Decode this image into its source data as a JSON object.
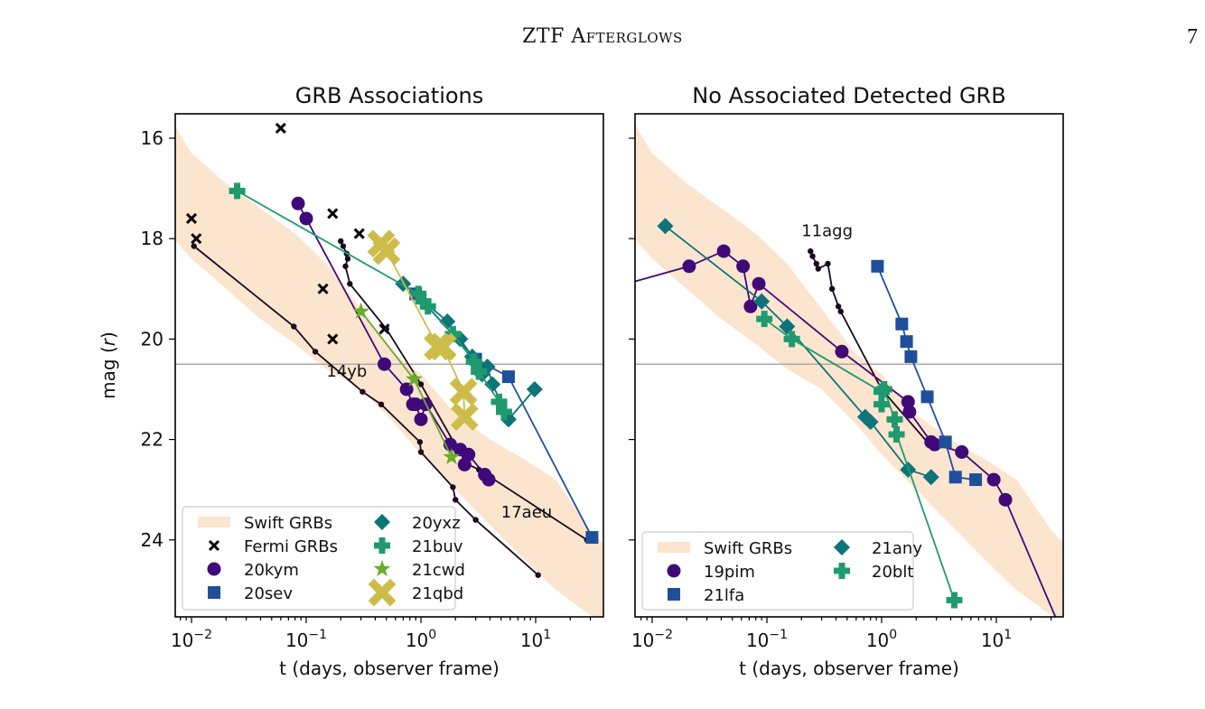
{
  "page": {
    "running_header": "ZTF Afterglows",
    "page_number": "7"
  },
  "chart_data": [
    {
      "type": "scatter",
      "title": "GRB Associations",
      "xlabel": "t (days, observer frame)",
      "ylabel": "mag (r)",
      "xscale": "log",
      "xlim": [
        0.007,
        40
      ],
      "ylim": [
        25.5,
        15.6
      ],
      "yinverted": true,
      "xticks": [
        "10^-2",
        "10^-1",
        "10^0",
        "10^1"
      ],
      "yticks": [
        16,
        18,
        20,
        22,
        24
      ],
      "hline": 20.5,
      "legend_placement": "lower-left",
      "legend": [
        "Swift GRBs",
        "Fermi GRBs",
        "20kym",
        "20sev",
        "20yxz",
        "21buv",
        "21cwd",
        "21qbd"
      ],
      "annotations": [
        {
          "text": "14yb",
          "x": 0.15,
          "y": 20.75
        },
        {
          "text": "17aeu",
          "x": 5.0,
          "y": 23.55
        }
      ],
      "swift_band": {
        "x": [
          0.007,
          0.01,
          0.02,
          0.04,
          0.08,
          0.15,
          0.3,
          0.6,
          1.0,
          2.0,
          4.0,
          8.0,
          15.0,
          30.0,
          40.0
        ],
        "upper": [
          15.7,
          16.3,
          16.9,
          17.4,
          17.9,
          18.5,
          19.4,
          20.3,
          20.7,
          21.5,
          22.0,
          22.4,
          22.8,
          23.8,
          24.1
        ],
        "lower": [
          18.0,
          18.4,
          19.0,
          19.6,
          20.1,
          20.6,
          21.0,
          21.7,
          22.3,
          23.0,
          23.7,
          24.4,
          25.0,
          25.5,
          25.6
        ]
      },
      "series": [
        {
          "name": "Fermi GRBs",
          "marker": "x",
          "color": "#000000",
          "line": false,
          "x": [
            0.06,
            0.01,
            0.011,
            0.17,
            0.14,
            0.29,
            0.17,
            0.48
          ],
          "y": [
            15.8,
            17.6,
            18.0,
            17.5,
            19.0,
            17.9,
            20.0,
            19.8
          ]
        },
        {
          "name": "14yb",
          "marker": "dot",
          "color": "#1a0a1e",
          "line": true,
          "x": [
            0.0105,
            0.078,
            0.12,
            0.31,
            0.45,
            0.98,
            1.0,
            1.9,
            2.0,
            3.0,
            10.5
          ],
          "y": [
            18.15,
            19.75,
            20.25,
            21.05,
            21.3,
            22.05,
            22.25,
            22.95,
            23.2,
            23.6,
            24.7
          ]
        },
        {
          "name": "17aeu",
          "marker": "dot",
          "color": "#1a0a1e",
          "line": true,
          "x": [
            0.2,
            0.21,
            0.225,
            0.23,
            0.22,
            0.24,
            0.5,
            1.0,
            2.1,
            2.6,
            3.2,
            28
          ],
          "y": [
            18.05,
            18.15,
            18.3,
            18.4,
            18.55,
            18.9,
            19.8,
            20.9,
            22.2,
            22.5,
            22.6,
            24.0
          ]
        },
        {
          "name": "20kym",
          "marker": "circle",
          "color": "#40097a",
          "line": true,
          "x": [
            0.085,
            0.1,
            0.48,
            0.75,
            0.85,
            0.9,
            1.0,
            1.1,
            1.8,
            2.2,
            2.4,
            2.6,
            3.6,
            3.9
          ],
          "y": [
            17.3,
            17.6,
            20.5,
            21.0,
            21.3,
            21.3,
            21.6,
            21.3,
            22.1,
            22.2,
            22.5,
            22.3,
            22.7,
            22.8
          ]
        },
        {
          "name": "20sev",
          "marker": "square",
          "color": "#1f4f9a",
          "line": true,
          "x": [
            0.9,
            3.0,
            5.8,
            31
          ],
          "y": [
            19.1,
            20.4,
            20.75,
            23.95
          ]
        },
        {
          "name": "20yxz",
          "marker": "diamond",
          "color": "#0e7479",
          "line": true,
          "x": [
            0.7,
            1.7,
            2.2,
            2.8,
            3.1,
            3.4,
            3.8,
            4.2,
            5.8,
            9.8
          ],
          "y": [
            18.9,
            19.65,
            20.0,
            20.35,
            20.5,
            20.7,
            20.55,
            20.9,
            21.6,
            21.0
          ]
        },
        {
          "name": "21buv",
          "marker": "plus",
          "color": "#1f9a6e",
          "line": true,
          "x": [
            0.025,
            0.95,
            1.05,
            1.15,
            1.9,
            2.9,
            3.2,
            4.8,
            5.3
          ],
          "y": [
            17.05,
            19.1,
            19.25,
            19.35,
            19.9,
            20.45,
            20.65,
            21.25,
            21.45
          ]
        },
        {
          "name": "21cwd",
          "marker": "star",
          "color": "#6aad2c",
          "line": true,
          "x": [
            0.3,
            0.87,
            1.85
          ],
          "y": [
            19.45,
            20.8,
            22.35
          ]
        },
        {
          "name": "21qbd",
          "marker": "xfat",
          "color": "#cdbc49",
          "line": true,
          "x": [
            0.45,
            0.5,
            1.4,
            1.55,
            2.35,
            2.4
          ],
          "y": [
            18.1,
            18.25,
            20.15,
            20.15,
            21.05,
            21.55
          ]
        }
      ]
    },
    {
      "type": "scatter",
      "title": "No Associated Detected GRB",
      "xlabel": "t (days, observer frame)",
      "ylabel": "",
      "xscale": "log",
      "xlim": [
        0.007,
        40
      ],
      "ylim": [
        25.5,
        15.6
      ],
      "yinverted": true,
      "xticks": [
        "10^-2",
        "10^-1",
        "10^0",
        "10^1"
      ],
      "yticks": [
        16,
        18,
        20,
        22,
        24
      ],
      "hline": 20.5,
      "legend_placement": "lower-left",
      "legend": [
        "Swift GRBs",
        "19pim",
        "21lfa",
        "21any",
        "20blt"
      ],
      "annotations": [
        {
          "text": "11agg",
          "x": 0.2,
          "y": 17.95
        }
      ],
      "swift_band": {
        "x": [
          0.007,
          0.01,
          0.02,
          0.04,
          0.08,
          0.15,
          0.3,
          0.6,
          1.0,
          2.0,
          4.0,
          8.0,
          15.0,
          30.0,
          40.0
        ],
        "upper": [
          15.7,
          16.3,
          16.9,
          17.4,
          17.9,
          18.5,
          19.4,
          20.3,
          20.7,
          21.5,
          22.0,
          22.4,
          22.8,
          23.8,
          24.1
        ],
        "lower": [
          18.0,
          18.4,
          19.0,
          19.6,
          20.1,
          20.6,
          21.0,
          21.7,
          22.3,
          23.0,
          23.7,
          24.4,
          25.0,
          25.5,
          25.6
        ]
      },
      "series": [
        {
          "name": "11agg",
          "marker": "dot",
          "color": "#1a0a1e",
          "line": true,
          "x": [
            0.24,
            0.25,
            0.27,
            0.28,
            0.34,
            0.37,
            0.42,
            0.44,
            1.0,
            2.5
          ],
          "y": [
            18.25,
            18.35,
            18.5,
            18.6,
            18.5,
            19.0,
            19.35,
            19.45,
            21.0,
            22.05
          ]
        },
        {
          "name": "19pim",
          "marker": "circle",
          "color": "#40097a",
          "line": true,
          "x": [
            0.005,
            0.021,
            0.042,
            0.062,
            0.072,
            0.085,
            0.45,
            1.7,
            1.75,
            2.7,
            2.9,
            5.0,
            9.5,
            12,
            40
          ],
          "y": [
            18.95,
            18.55,
            18.25,
            18.55,
            19.35,
            18.9,
            20.25,
            21.25,
            21.45,
            22.05,
            22.1,
            22.25,
            22.8,
            23.2,
            26
          ]
        },
        {
          "name": "21lfa",
          "marker": "square",
          "color": "#1f4f9a",
          "line": true,
          "x": [
            0.92,
            1.5,
            1.65,
            1.8,
            2.5,
            3.6,
            4.4,
            6.6
          ],
          "y": [
            18.55,
            19.7,
            20.05,
            20.35,
            21.15,
            22.05,
            22.75,
            22.8
          ]
        },
        {
          "name": "21any",
          "marker": "diamond",
          "color": "#0e7479",
          "line": true,
          "x": [
            0.013,
            0.09,
            0.15,
            0.72,
            0.8,
            1.7,
            2.7
          ],
          "y": [
            17.75,
            19.25,
            19.75,
            21.55,
            21.65,
            22.6,
            22.75
          ]
        },
        {
          "name": "20blt",
          "marker": "plus",
          "color": "#1f9a6e",
          "line": true,
          "x": [
            0.095,
            0.165,
            1.0,
            1.0,
            1.05,
            1.3,
            1.35,
            4.3
          ],
          "y": [
            19.6,
            20.0,
            21.05,
            21.3,
            21.0,
            21.6,
            21.9,
            25.2
          ]
        }
      ]
    }
  ]
}
